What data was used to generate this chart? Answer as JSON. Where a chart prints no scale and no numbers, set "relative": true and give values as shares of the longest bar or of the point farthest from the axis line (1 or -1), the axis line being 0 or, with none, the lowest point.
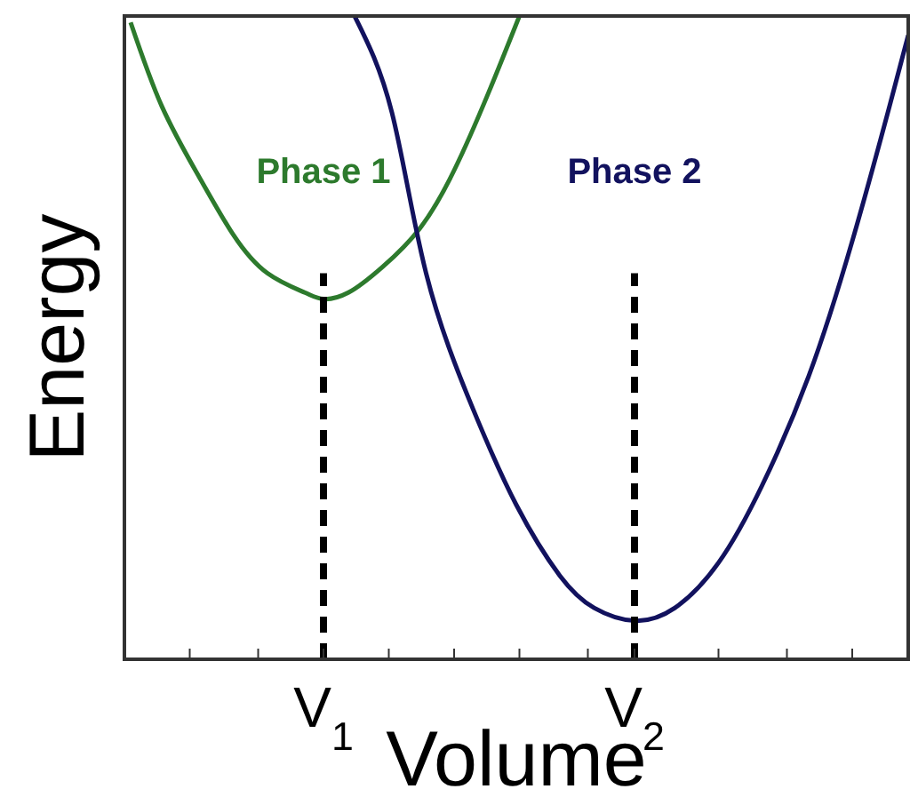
{
  "chart_data": {
    "type": "line",
    "relative": true,
    "xlabel": "Volume",
    "ylabel": "Energy",
    "xlim": [
      0.36,
      2.88
    ],
    "xticks": [
      {
        "value": 0.57,
        "label": null
      },
      {
        "value": 0.79,
        "label": null
      },
      {
        "value": 1,
        "label": "V$_{1}$"
      },
      {
        "value": 1.21,
        "label": null
      },
      {
        "value": 1.42,
        "label": null
      },
      {
        "value": 1.63,
        "label": null
      },
      {
        "value": 1.85,
        "label": null
      },
      {
        "value": 2,
        "label": "V$_{2}$"
      },
      {
        "value": 2.27,
        "label": null
      },
      {
        "value": 2.49,
        "label": null
      },
      {
        "value": 2.7,
        "label": null
      }
    ],
    "series": [
      {
        "name": "Phase 1",
        "color": "#2d7a2d",
        "x": [
          0.38,
          0.48,
          0.6,
          0.71,
          0.82,
          0.94,
          1.0,
          1.08,
          1.19,
          1.31,
          1.42,
          1.53,
          1.63
        ],
        "values": [
          0.99,
          0.86,
          0.75,
          0.66,
          0.6,
          0.57,
          0.56,
          0.57,
          0.61,
          0.67,
          0.76,
          0.88,
          1.0
        ]
      },
      {
        "name": "Phase 2",
        "color": "#12125e",
        "x": [
          1.1,
          1.22,
          1.33,
          1.48,
          1.62,
          1.76,
          1.87,
          2.0,
          2.13,
          2.27,
          2.41,
          2.56,
          2.7,
          2.82,
          2.88
        ],
        "values": [
          1.0,
          0.85,
          0.6,
          0.39,
          0.24,
          0.13,
          0.08,
          0.06,
          0.08,
          0.15,
          0.27,
          0.44,
          0.65,
          0.86,
          0.97
        ]
      },
      {
        "type": "line",
        "line_style": "dashed",
        "color": "#000000",
        "x": [
          1,
          1
        ],
        "values": [
          0,
          0.6
        ]
      },
      {
        "type": "line",
        "line_style": "dashed",
        "color": "#000000",
        "x": [
          2,
          2
        ],
        "values": [
          0,
          0.6
        ]
      }
    ]
  }
}
